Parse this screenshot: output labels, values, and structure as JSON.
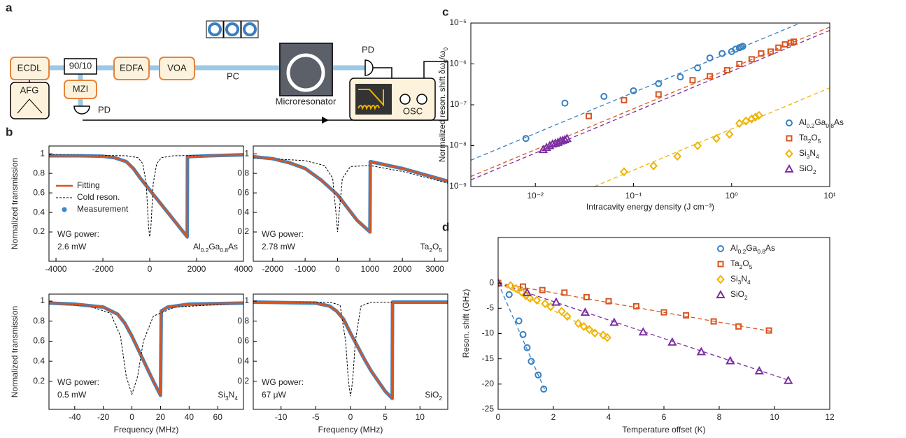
{
  "diagram": {
    "panel": "a",
    "labels": {
      "ecdl": "ECDL",
      "splitter": "90/10",
      "edfa": "EDFA",
      "voa": "VOA",
      "pc": "PC",
      "resonator": "Microresonator",
      "pd_top": "PD",
      "osc": "OSC",
      "mzi": "MZI",
      "afg": "AFG",
      "pd_bottom": "PD"
    }
  },
  "chart_data": [
    {
      "type": "line",
      "panel": "b",
      "ylabel": "Normalized transmission",
      "xlim": [
        -4300,
        4000
      ],
      "ylim": [
        -0.1,
        1.08
      ],
      "xticks": [
        -4000,
        -2000,
        0,
        2000,
        4000
      ],
      "yticks": [
        0.2,
        0.4,
        0.6,
        0.8,
        1
      ],
      "note": [
        "WG power:",
        "2.6 mW"
      ],
      "material": "Al0.2Ga0.8As",
      "legend": "left",
      "series": [
        {
          "name": "Fitting",
          "color": "#d9541e",
          "style": "solid",
          "x": [
            -4300,
            -3000,
            -2000,
            -1500,
            -1000,
            -700,
            -400,
            -100,
            200,
            500,
            800,
            1100,
            1400,
            1600,
            1610,
            2500,
            4000
          ],
          "values": [
            0.98,
            0.98,
            0.975,
            0.96,
            0.92,
            0.85,
            0.75,
            0.66,
            0.57,
            0.48,
            0.39,
            0.3,
            0.21,
            0.15,
            0.97,
            0.98,
            0.99
          ]
        },
        {
          "name": "Cold reson.",
          "color": "#000000",
          "style": "dashed",
          "x": [
            -4300,
            -1000,
            -500,
            -300,
            -150,
            -50,
            0,
            50,
            150,
            300,
            500,
            1000,
            4000
          ],
          "values": [
            0.99,
            0.98,
            0.96,
            0.9,
            0.7,
            0.25,
            0.15,
            0.25,
            0.7,
            0.9,
            0.96,
            0.98,
            0.99
          ]
        },
        {
          "name": "Measurement",
          "color": "#3b86c6",
          "style": "dots",
          "x": [
            -4300,
            -3000,
            -2000,
            -1500,
            -1000,
            -700,
            -400,
            -100,
            200,
            500,
            800,
            1100,
            1400,
            1600,
            1610,
            2500,
            4000
          ],
          "values": [
            0.98,
            0.98,
            0.975,
            0.96,
            0.92,
            0.85,
            0.75,
            0.66,
            0.57,
            0.48,
            0.39,
            0.3,
            0.21,
            0.15,
            0.97,
            0.98,
            0.99
          ]
        }
      ]
    },
    {
      "type": "line",
      "xlim": [
        -2600,
        3400
      ],
      "ylim": [
        -0.1,
        1.08
      ],
      "xticks": [
        -2000,
        -1000,
        0,
        1000,
        2000,
        3000
      ],
      "yticks": [
        0.2,
        0.4,
        0.6,
        0.8,
        1
      ],
      "note": [
        "WG power:",
        "2.78 mW"
      ],
      "material": "Ta2O5",
      "series": [
        {
          "color": "#d9541e",
          "style": "solid",
          "x": [
            -2600,
            -2000,
            -1500,
            -1000,
            -500,
            0,
            300,
            600,
            1000,
            1010,
            2000,
            3400
          ],
          "values": [
            0.97,
            0.95,
            0.91,
            0.85,
            0.73,
            0.58,
            0.45,
            0.32,
            0.2,
            0.92,
            0.85,
            0.72
          ]
        },
        {
          "color": "#000000",
          "style": "dashed",
          "x": [
            -2600,
            -1000,
            -400,
            -150,
            -50,
            0,
            50,
            150,
            400,
            1000,
            2000,
            3400
          ],
          "values": [
            0.96,
            0.93,
            0.88,
            0.75,
            0.4,
            0.2,
            0.4,
            0.75,
            0.87,
            0.88,
            0.82,
            0.7
          ]
        },
        {
          "color": "#3b86c6",
          "style": "dots",
          "x": [
            -2600,
            -2000,
            -1500,
            -1000,
            -500,
            0,
            300,
            600,
            1000,
            1010,
            2000,
            3400
          ],
          "values": [
            0.97,
            0.95,
            0.91,
            0.85,
            0.73,
            0.58,
            0.45,
            0.32,
            0.2,
            0.92,
            0.85,
            0.72
          ]
        }
      ]
    },
    {
      "type": "line",
      "xlabel": "Frequency (MHz)",
      "ylabel": "Normalized transmission",
      "xlim": [
        -58,
        78
      ],
      "ylim": [
        -0.08,
        1.07
      ],
      "xticks": [
        -40,
        -20,
        0,
        20,
        40,
        60
      ],
      "yticks": [
        0.2,
        0.4,
        0.6,
        0.8,
        1
      ],
      "note": [
        "WG power:",
        "0.5 mW"
      ],
      "material": "Si3N4",
      "series": [
        {
          "color": "#d9541e",
          "style": "solid",
          "x": [
            -58,
            -40,
            -20,
            -10,
            -5,
            0,
            5,
            10,
            15,
            20,
            20.5,
            25,
            40,
            78
          ],
          "values": [
            0.98,
            0.97,
            0.94,
            0.87,
            0.78,
            0.65,
            0.5,
            0.35,
            0.2,
            0.06,
            0.9,
            0.94,
            0.97,
            0.98
          ]
        },
        {
          "color": "#000000",
          "style": "dashed",
          "x": [
            -58,
            -30,
            -15,
            -8,
            -4,
            0,
            4,
            8,
            15,
            30,
            78
          ],
          "values": [
            0.98,
            0.95,
            0.88,
            0.65,
            0.25,
            0.07,
            0.25,
            0.6,
            0.85,
            0.94,
            0.98
          ]
        },
        {
          "color": "#3b86c6",
          "style": "dots",
          "x": [
            -58,
            -40,
            -20,
            -10,
            -5,
            0,
            5,
            10,
            15,
            20,
            20.5,
            25,
            40,
            78
          ],
          "values": [
            0.98,
            0.97,
            0.94,
            0.87,
            0.78,
            0.65,
            0.5,
            0.35,
            0.2,
            0.06,
            0.9,
            0.94,
            0.97,
            0.98
          ]
        }
      ]
    },
    {
      "type": "line",
      "xlabel": "Frequency (MHz)",
      "xlim": [
        -14,
        14
      ],
      "ylim": [
        -0.08,
        1.07
      ],
      "xticks": [
        -10,
        -5,
        0,
        5,
        10
      ],
      "yticks": [
        0.2,
        0.4,
        0.6,
        0.8,
        1
      ],
      "note": [
        "WG power:",
        "67 μW"
      ],
      "material": "SiO2",
      "series": [
        {
          "color": "#d9541e",
          "style": "solid",
          "x": [
            -14,
            -5,
            -3,
            -2,
            -1,
            0,
            1,
            2,
            3,
            4,
            5,
            6,
            6.05,
            14
          ],
          "values": [
            0.99,
            0.98,
            0.95,
            0.9,
            0.82,
            0.68,
            0.55,
            0.42,
            0.3,
            0.2,
            0.1,
            0.03,
            0.99,
            0.99
          ]
        },
        {
          "color": "#000000",
          "style": "dashed",
          "x": [
            -14,
            -3,
            -1.5,
            -0.7,
            -0.3,
            0,
            0.3,
            0.7,
            1.5,
            3,
            14
          ],
          "values": [
            0.99,
            0.99,
            0.96,
            0.6,
            0.2,
            0.05,
            0.2,
            0.6,
            0.95,
            0.99,
            0.99
          ]
        },
        {
          "color": "#3b86c6",
          "style": "dots",
          "x": [
            -14,
            -5,
            -3,
            -2,
            -1,
            0,
            1,
            2,
            3,
            4,
            5,
            6,
            6.05,
            14
          ],
          "values": [
            0.99,
            0.98,
            0.95,
            0.9,
            0.82,
            0.68,
            0.55,
            0.42,
            0.3,
            0.2,
            0.1,
            0.03,
            0.99,
            0.99
          ]
        }
      ]
    },
    {
      "type": "scatter",
      "panel": "c",
      "xlabel": "Intracavity energy density (J cm⁻³)",
      "ylabel": "Normalized reson. shift δω0/ω0",
      "xscale": "log",
      "yscale": "log",
      "xlim": [
        0.0022,
        10
      ],
      "ylim": [
        1e-09,
        1e-05
      ],
      "xticks": [
        {
          "value": 0.01,
          "label": "10⁻²"
        },
        {
          "value": 0.1,
          "label": "10⁻¹"
        },
        {
          "value": 1,
          "label": "10⁰"
        },
        {
          "value": 10,
          "label": "10¹"
        }
      ],
      "yticks": [
        {
          "value": 1e-09,
          "label": "10⁻⁹"
        },
        {
          "value": 1e-08,
          "label": "10⁻⁸"
        },
        {
          "value": 1e-07,
          "label": "10⁻⁷"
        },
        {
          "value": 1e-06,
          "label": "10⁻⁶"
        },
        {
          "value": 1e-05,
          "label": "10⁻⁵"
        }
      ],
      "legend": "lower-right",
      "series": [
        {
          "name": "Al0.2Ga0.8As",
          "color": "#3a7fc1",
          "marker": "circle",
          "x": [
            0.008,
            0.02,
            0.05,
            0.1,
            0.18,
            0.3,
            0.45,
            0.6,
            0.8,
            1,
            1.1,
            1.2,
            1.25,
            1.3
          ],
          "values": [
            1.5e-08,
            1.1e-07,
            1.6e-07,
            2.2e-07,
            3.3e-07,
            4.8e-07,
            8e-07,
            1.4e-06,
            1.8e-06,
            2e-06,
            2.3e-06,
            2.5e-06,
            2.6e-06,
            2.7e-06
          ]
        },
        {
          "name": "Ta2O5",
          "color": "#d9541e",
          "marker": "square",
          "x": [
            0.035,
            0.08,
            0.18,
            0.4,
            0.6,
            0.9,
            1.2,
            1.6,
            2,
            2.5,
            3,
            3.5,
            4,
            4.3
          ],
          "values": [
            5.3e-08,
            1.3e-07,
            1.8e-07,
            4e-07,
            5e-07,
            7e-07,
            1e-06,
            1.3e-06,
            1.8e-06,
            2e-06,
            2.5e-06,
            3e-06,
            3.3e-06,
            3.5e-06
          ]
        },
        {
          "name": "Si3N4",
          "color": "#f0b400",
          "marker": "diamond",
          "x": [
            0.08,
            0.16,
            0.28,
            0.45,
            0.7,
            0.95,
            1.2,
            1.4,
            1.6,
            1.75,
            1.9
          ],
          "values": [
            2.3e-09,
            3.2e-09,
            5.5e-09,
            1e-08,
            1.5e-08,
            1.9e-08,
            3.5e-08,
            4e-08,
            4.5e-08,
            5e-08,
            5.5e-08
          ]
        },
        {
          "name": "SiO2",
          "color": "#7b2fa0",
          "marker": "triangle",
          "x": [
            0.012,
            0.013,
            0.014,
            0.015,
            0.016,
            0.017,
            0.018,
            0.019,
            0.02,
            0.021
          ],
          "values": [
            8e-09,
            9e-09,
            1e-08,
            1.1e-08,
            1.15e-08,
            1.2e-08,
            1.3e-08,
            1.35e-08,
            1.4e-08,
            1.5e-08
          ]
        }
      ],
      "fits": [
        {
          "color": "#3a7fc1",
          "x": [
            0.0022,
            5
          ],
          "values": [
            4.4e-09,
            1e-05
          ]
        },
        {
          "color": "#d9541e",
          "x": [
            0.0022,
            10
          ],
          "values": [
            1.76e-09,
            8e-06
          ]
        },
        {
          "color": "#7b2fa0",
          "x": [
            0.0022,
            10
          ],
          "values": [
            1.45e-09,
            6.6e-06
          ]
        },
        {
          "color": "#f0b400",
          "x": [
            0.04,
            10
          ],
          "values": [
            1e-09,
            2.6e-07
          ]
        }
      ]
    },
    {
      "type": "scatter",
      "panel": "d",
      "xlabel": "Temperature offset (K)",
      "ylabel": "Reson. shift (GHz)",
      "xlim": [
        0,
        12
      ],
      "ylim": [
        -25,
        9
      ],
      "xticks": [
        0,
        2,
        4,
        6,
        8,
        10,
        12
      ],
      "yticks": [
        -25,
        -20,
        -15,
        -10,
        -5,
        0
      ],
      "legend": "upper-right",
      "series": [
        {
          "name": "Al0.2Ga0.8As",
          "color": "#3a7fc1",
          "marker": "circle",
          "x": [
            0,
            0.4,
            0.75,
            0.9,
            1.05,
            1.2,
            1.45,
            1.65
          ],
          "values": [
            0,
            -2.3,
            -7.5,
            -10.2,
            -12.8,
            -15.5,
            -18.2,
            -21
          ]
        },
        {
          "name": "Ta2O5",
          "color": "#d9541e",
          "marker": "square",
          "x": [
            0,
            0.9,
            1.6,
            2.4,
            3.2,
            4,
            5,
            6,
            6.8,
            7.8,
            8.7,
            9.8
          ],
          "values": [
            0,
            -0.7,
            -1.4,
            -1.9,
            -2.8,
            -3.6,
            -4.6,
            -5.8,
            -6.4,
            -7.6,
            -8.6,
            -9.4
          ]
        },
        {
          "name": "Si3N4",
          "color": "#f0b400",
          "marker": "diamond",
          "x": [
            0,
            0.45,
            0.65,
            0.85,
            1,
            1.15,
            1.4,
            1.7,
            1.9,
            2.3,
            2.5,
            2.9,
            3.1,
            3.3,
            3.5,
            3.8,
            3.95
          ],
          "values": [
            0,
            -0.5,
            -1.1,
            -1.8,
            -2.5,
            -3,
            -3.4,
            -4.1,
            -4.7,
            -5.6,
            -6.6,
            -8,
            -8.6,
            -9.2,
            -9.9,
            -10.3,
            -10.8
          ]
        },
        {
          "name": "SiO2",
          "color": "#7b2fa0",
          "marker": "triangle",
          "x": [
            0,
            1.05,
            2.1,
            3.15,
            4.2,
            5.25,
            6.3,
            7.35,
            8.4,
            9.45,
            10.5
          ],
          "values": [
            0,
            -1.9,
            -3.8,
            -5.8,
            -7.8,
            -9.7,
            -11.7,
            -13.6,
            -15.4,
            -17.4,
            -19.3
          ]
        }
      ],
      "fits": [
        {
          "color": "#3a7fc1",
          "x": [
            0,
            1.7
          ],
          "values": [
            0,
            -21.3
          ]
        },
        {
          "color": "#d9541e",
          "x": [
            0,
            9.9
          ],
          "values": [
            0,
            -9.6
          ]
        },
        {
          "color": "#f0b400",
          "x": [
            0,
            4
          ],
          "values": [
            0,
            -10.9
          ]
        },
        {
          "color": "#7b2fa0",
          "x": [
            0,
            10.6
          ],
          "values": [
            0,
            -19.4
          ]
        }
      ]
    }
  ]
}
